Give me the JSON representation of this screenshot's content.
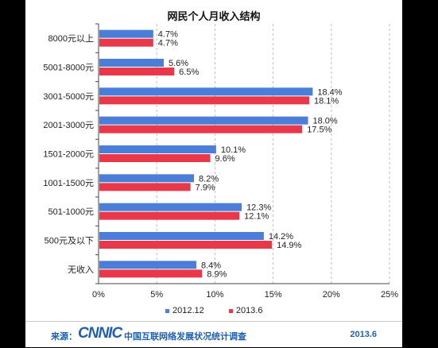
{
  "chart_data": {
    "type": "bar",
    "orientation": "horizontal",
    "title": "网民个人月收入结构",
    "categories": [
      "8000元以上",
      "5001-8000元",
      "3001-5000元",
      "2001-3000元",
      "1501-2000元",
      "1001-1500元",
      "501-1000元",
      "500元及以下",
      "无收入"
    ],
    "series": [
      {
        "name": "2012.12",
        "color": "#4a7ed8",
        "values": [
          4.7,
          5.6,
          18.4,
          18.0,
          10.1,
          8.2,
          12.3,
          14.2,
          8.4
        ],
        "labels": [
          "4.7%",
          "5.6%",
          "18.4%",
          "18.0%",
          "10.1%",
          "8.2%",
          "12.3%",
          "14.2%",
          "8.4%"
        ]
      },
      {
        "name": "2013.6",
        "color": "#e8384a",
        "values": [
          4.7,
          6.5,
          18.1,
          17.5,
          9.6,
          7.9,
          12.1,
          14.9,
          8.9
        ],
        "labels": [
          "4.7%",
          "6.5%",
          "18.1%",
          "17.5%",
          "9.6%",
          "7.9%",
          "12.1%",
          "14.9%",
          "8.9%"
        ]
      }
    ],
    "xlim": [
      0,
      25
    ],
    "xticks": [
      "0%",
      "5%",
      "10%",
      "15%",
      "20%",
      "25%"
    ],
    "grid": "vertical-dashed",
    "legend_position": "bottom"
  },
  "footer": {
    "source_label": "来源：",
    "logo": "CNNIC",
    "org": "中国互联网络发展状况统计调查",
    "date": "2013.6"
  }
}
